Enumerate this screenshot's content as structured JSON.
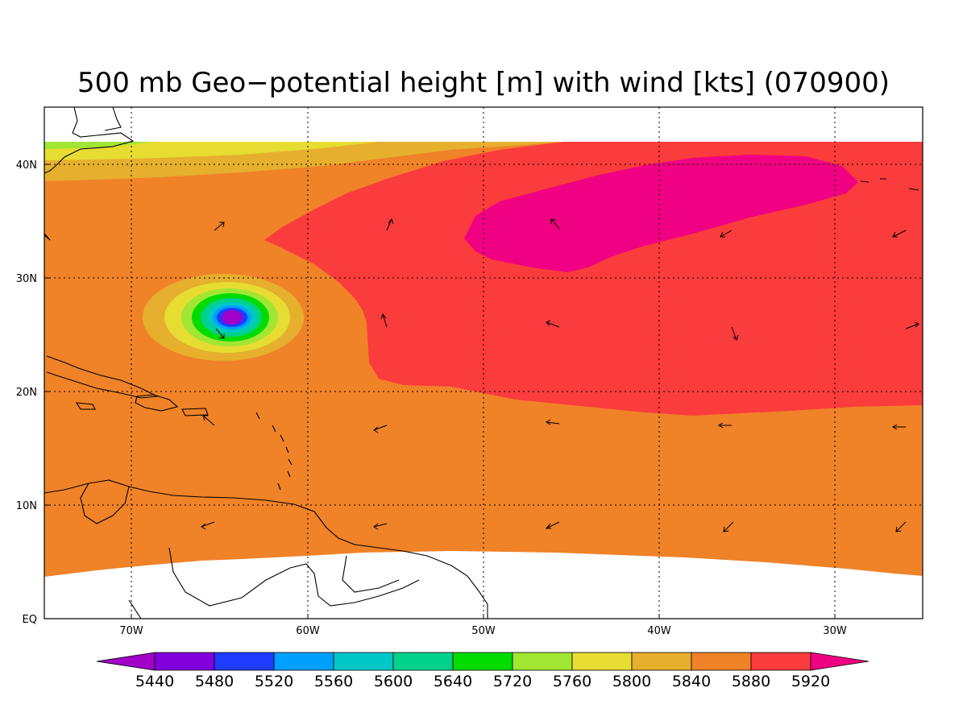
{
  "title": "500 mb Geo−potential height [m] with wind [kts] (070900)",
  "map": {
    "lon_labels": [
      "70W",
      "60W",
      "50W",
      "40W",
      "30W"
    ],
    "lat_labels": [
      "EQ",
      "10N",
      "20N",
      "30N",
      "40N"
    ],
    "grid": true
  },
  "colorbar": {
    "levels": [
      "5440",
      "5480",
      "5520",
      "5560",
      "5600",
      "5640",
      "5720",
      "5760",
      "5800",
      "5840",
      "5880",
      "5920"
    ],
    "colors": [
      "#a000c8",
      "#8200dc",
      "#1e3cff",
      "#00a0ff",
      "#00c8c8",
      "#00d28c",
      "#00dc00",
      "#a0e632",
      "#e6dc32",
      "#e6af2d",
      "#f08228",
      "#fa3c3c",
      "#f00082"
    ]
  },
  "fill_colors": {
    "ocean_base": "#f08228",
    "high": "#fa3c3c",
    "ridge": "#f00082",
    "low_ring_1": "#e6af2d",
    "low_ring_2": "#e6dc32",
    "low_ring_3": "#a0e632",
    "low_ring_4": "#00dc00",
    "low_ring_5": "#00d28c",
    "low_ring_6": "#00c8c8",
    "low_ring_7": "#00a0ff",
    "low_ring_8": "#1e3cff",
    "low_core": "#a000c8"
  },
  "wind_arrows": {
    "units": "kts"
  }
}
